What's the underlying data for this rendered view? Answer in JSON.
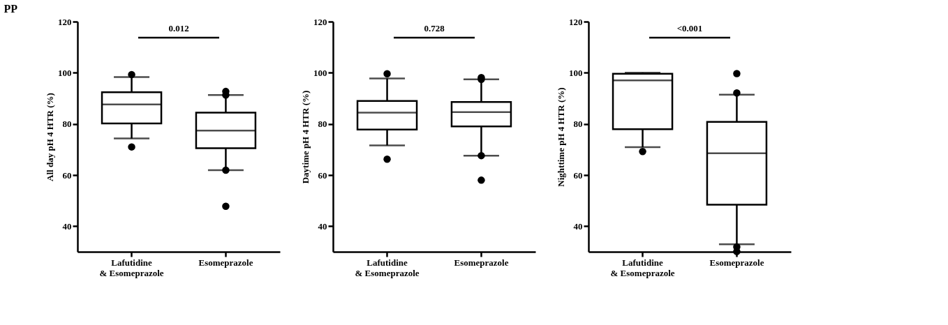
{
  "chart_data": [
    {
      "type": "box",
      "title": "PP",
      "ylabel": "All day pH 4 HTR (%)",
      "categories": [
        "Lafutidine\n& Esomeprazole",
        "Esomeprazole"
      ],
      "ylim": [
        30,
        120
      ],
      "yticks": [
        40,
        60,
        80,
        100,
        120
      ],
      "grid": false,
      "annotations": [
        "0.012"
      ],
      "boxes": [
        {
          "low": 74.3,
          "q1": 80.2,
          "median": 87.6,
          "q3": 92.4,
          "high": 98.3,
          "outliers": [
            99.3,
            71
          ]
        },
        {
          "low": 61.9,
          "q1": 70.5,
          "median": 77.4,
          "q3": 84.4,
          "high": 91.3,
          "outliers": [
            92.7,
            91.3,
            61.9,
            47.8
          ]
        }
      ]
    },
    {
      "type": "box",
      "ylabel": "Daytime pH 4 HTR (%)",
      "categories": [
        "Lafutidine\n& Esomeprazole",
        "Esomeprazole"
      ],
      "ylim": [
        30,
        120
      ],
      "yticks": [
        40,
        60,
        80,
        100,
        120
      ],
      "grid": false,
      "annotations": [
        "0.728"
      ],
      "boxes": [
        {
          "low": 71.6,
          "q1": 77.8,
          "median": 84.4,
          "q3": 89.0,
          "high": 97.8,
          "outliers": [
            99.6,
            66.2
          ]
        },
        {
          "low": 67.6,
          "q1": 79.0,
          "median": 84.6,
          "q3": 88.6,
          "high": 97.4,
          "outliers": [
            98.1,
            97.4,
            67.6,
            58.0
          ]
        }
      ]
    },
    {
      "type": "box",
      "ylabel": "Nighttime pH 4 HTR (%)",
      "categories": [
        "Lafutidine\n& Esomeprazole",
        "Esomeprazole"
      ],
      "ylim": [
        30,
        120
      ],
      "yticks": [
        40,
        60,
        80,
        100,
        120
      ],
      "grid": false,
      "annotations": [
        "<0.001"
      ],
      "boxes": [
        {
          "low": 70.9,
          "q1": 77.9,
          "median": 97.0,
          "q3": 99.6,
          "high": 100,
          "outliers": [
            69.2
          ]
        },
        {
          "low": 32.9,
          "q1": 48.4,
          "median": 68.5,
          "q3": 80.8,
          "high": 91.4,
          "outliers": [
            99.7,
            92.1,
            31.9,
            30.1
          ]
        }
      ]
    }
  ]
}
